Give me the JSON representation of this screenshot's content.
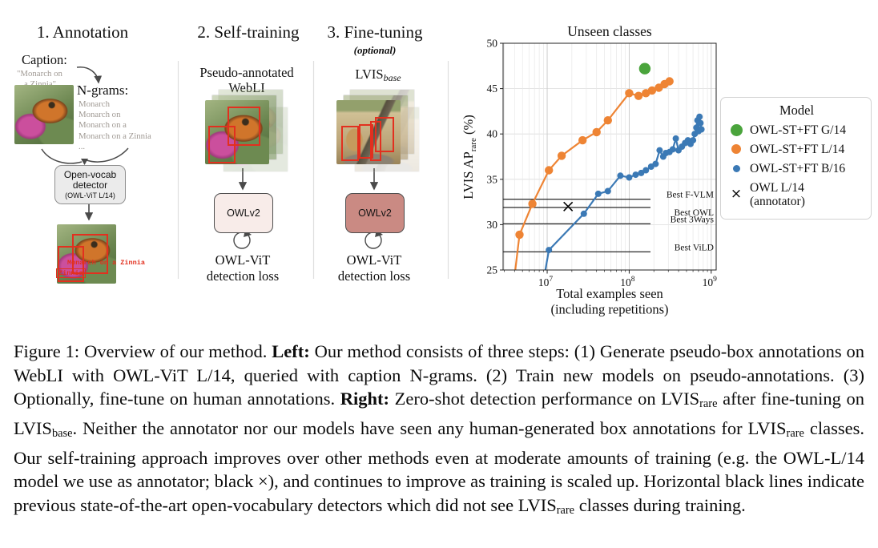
{
  "diagram": {
    "steps": [
      {
        "title": "1. Annotation"
      },
      {
        "title": "2. Self-training"
      },
      {
        "title": "3. Fine-tuning",
        "subtitle": "(optional)"
      }
    ],
    "annotation": {
      "caption_label": "Caption:",
      "caption_lines": [
        "\"Monarch on",
        "a Zinnia\""
      ],
      "ngrams_label": "N-grams:",
      "ngrams": [
        "Monarch",
        "Monarch on",
        "Monarch on a",
        "Monarch on a Zinnia",
        "..."
      ],
      "detector_box": {
        "line1": "Open-vocab",
        "line2": "detector",
        "line3": "(OWL-ViT L/14)"
      },
      "output_labels": {
        "box1": "Monarch on a Zinnia",
        "box2": "Zinnia"
      }
    },
    "self_training": {
      "dataset_lines": [
        "Pseudo-annotated",
        "WebLI"
      ],
      "model_label": "OWLv2",
      "loss_lines": [
        "OWL-ViT",
        "detection loss"
      ]
    },
    "fine_tuning": {
      "dataset_main": "LVIS",
      "dataset_sub": "base",
      "model_label": "OWLv2",
      "loss_lines": [
        "OWL-ViT",
        "detection loss"
      ]
    }
  },
  "chart_data": {
    "type": "scatter",
    "title": "Unseen classes",
    "xlabel_lines": [
      "Total examples seen",
      "(including repetitions)"
    ],
    "ylabel": {
      "prefix": "LVIS AP",
      "sub": "rare",
      "suffix": " (%)"
    },
    "xscale": "log",
    "xlim": [
      2900000.0,
      1150000000.0
    ],
    "ylim": [
      25,
      50
    ],
    "yticks": [
      25,
      30,
      35,
      40,
      45,
      50
    ],
    "xticks": [
      {
        "base": "10",
        "exp": "7",
        "value": 10000000.0
      },
      {
        "base": "10",
        "exp": "8",
        "value": 100000000.0
      },
      {
        "base": "10",
        "exp": "9",
        "value": 1000000000.0
      }
    ],
    "grid": true,
    "series": [
      {
        "name": "OWL-ST+FT G/14",
        "color": "#4aa43c",
        "marker": "circle",
        "marker_r": 7.2,
        "line": false,
        "points": [
          [
            155000000.0,
            47.2
          ]
        ]
      },
      {
        "name": "OWL-ST+FT L/14",
        "color": "#ee8434",
        "marker": "circle",
        "marker_r": 5.2,
        "line": true,
        "points": [
          [
            4000000.0,
            24.3
          ],
          [
            4600000.0,
            28.9
          ],
          [
            6600000.0,
            32.3
          ],
          [
            10500000.0,
            36.0
          ],
          [
            15000000.0,
            37.6
          ],
          [
            27000000.0,
            39.3
          ],
          [
            40000000.0,
            40.2
          ],
          [
            55000000.0,
            41.5
          ],
          [
            100000000.0,
            44.5
          ],
          [
            130000000.0,
            44.2
          ],
          [
            160000000.0,
            44.5
          ],
          [
            190000000.0,
            44.8
          ],
          [
            230000000.0,
            45.1
          ],
          [
            270000000.0,
            45.5
          ],
          [
            310000000.0,
            45.8
          ]
        ]
      },
      {
        "name": "OWL-ST+FT B/16",
        "color": "#3b79b5",
        "marker": "circle",
        "marker_r": 4.0,
        "line": true,
        "points": [
          [
            9300000.0,
            24.5
          ],
          [
            10500000.0,
            27.2
          ],
          [
            28000000.0,
            31.2
          ],
          [
            42000000.0,
            33.4
          ],
          [
            55000000.0,
            33.7
          ],
          [
            78000000.0,
            35.4
          ],
          [
            100000000.0,
            35.2
          ],
          [
            120000000.0,
            35.5
          ],
          [
            140000000.0,
            35.7
          ],
          [
            160000000.0,
            36.0
          ],
          [
            185000000.0,
            36.4
          ],
          [
            210000000.0,
            36.7
          ],
          [
            235000000.0,
            38.2
          ],
          [
            260000000.0,
            37.5
          ],
          [
            280000000.0,
            37.9
          ],
          [
            310000000.0,
            38.0
          ],
          [
            340000000.0,
            38.3
          ],
          [
            370000000.0,
            39.5
          ],
          [
            400000000.0,
            38.2
          ],
          [
            440000000.0,
            38.6
          ],
          [
            480000000.0,
            39.0
          ],
          [
            520000000.0,
            39.3
          ],
          [
            560000000.0,
            38.9
          ],
          [
            600000000.0,
            39.3
          ],
          [
            630000000.0,
            40.0
          ],
          [
            660000000.0,
            40.7
          ],
          [
            680000000.0,
            41.5
          ],
          [
            700000000.0,
            40.3
          ],
          [
            720000000.0,
            41.9
          ],
          [
            740000000.0,
            41.2
          ],
          [
            760000000.0,
            40.5
          ]
        ]
      },
      {
        "name": "OWL L/14 (annotator)",
        "color": "#000000",
        "marker": "x",
        "line": false,
        "points": [
          [
            18000000.0,
            32.0
          ]
        ]
      }
    ],
    "baselines": [
      {
        "label": "Best F-VLM",
        "value": 32.8,
        "label_offset": -2
      },
      {
        "label": "Best OWL",
        "value": 31.9,
        "label_offset": 10
      },
      {
        "label": "Best 3Ways",
        "value": 30.1,
        "label_offset": -2
      },
      {
        "label": "Best ViLD",
        "value": 27.0,
        "label_offset": -2
      }
    ],
    "legend": {
      "title": "Model",
      "position": "outside-right",
      "entries": [
        {
          "marker": "circle",
          "series": 0,
          "label": "OWL-ST+FT G/14"
        },
        {
          "marker": "circle",
          "series": 1,
          "label": "OWL-ST+FT L/14"
        },
        {
          "marker": "circle",
          "series": 2,
          "label": "OWL-ST+FT B/16"
        },
        {
          "marker": "x",
          "series": 3,
          "label_lines": [
            "OWL L/14",
            "(annotator)"
          ]
        }
      ]
    }
  },
  "caption": {
    "segments": [
      {
        "t": "Figure 1: Overview of our method. ",
        "s": "n"
      },
      {
        "t": "Left:",
        "s": "b"
      },
      {
        "t": " Our method consists of three steps: (1) Generate pseudo-box annotations on WebLI with OWL-ViT L/14, queried with caption N-grams. (2) Train new models on pseudo-annotations. (3) Optionally, fine-tune on human annotations. ",
        "s": "n"
      },
      {
        "t": "Right:",
        "s": "b"
      },
      {
        "t": " Zero-shot detection performance on LVIS",
        "s": "n"
      },
      {
        "t": "rare",
        "s": "sub"
      },
      {
        "t": " after fine-tuning on LVIS",
        "s": "n"
      },
      {
        "t": "base",
        "s": "sub"
      },
      {
        "t": ". Neither the annotator nor our models have seen any human-generated box annotations for LVIS",
        "s": "n"
      },
      {
        "t": "rare",
        "s": "sub"
      },
      {
        "t": " classes. Our self-training approach improves over other methods even at moderate amounts of training (e.g. the OWL-L/14 model we use as annotator; black ×), and continues to improve as training is scaled up. Horizontal black lines indicate previous state-of-the-art open-vocabulary detectors which did not see LVIS",
        "s": "n"
      },
      {
        "t": "rare",
        "s": "sub"
      },
      {
        "t": " classes during training.",
        "s": "n"
      }
    ]
  }
}
